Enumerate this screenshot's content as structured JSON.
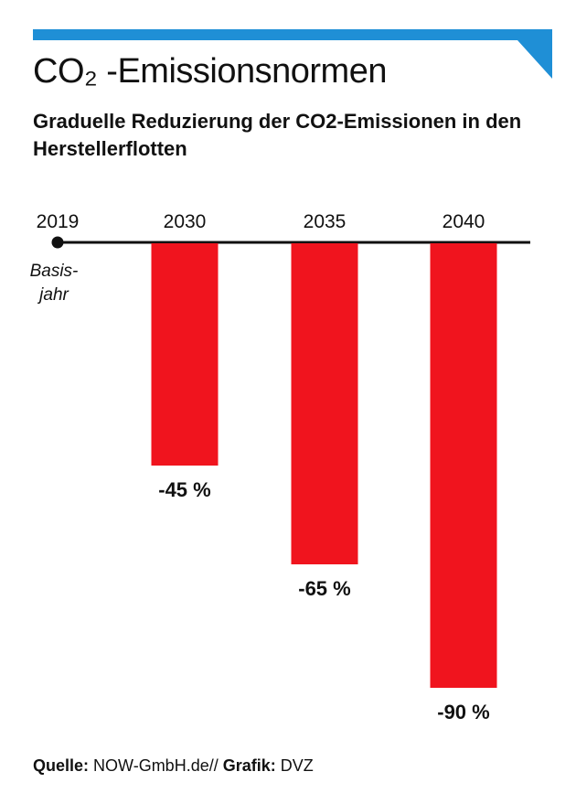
{
  "title": "CO₂ -Emissionsnormen",
  "subtitle": "Graduelle Reduzierung der CO2-Emissionen in den Herstellerflotten",
  "chart_data": {
    "type": "bar",
    "title": "CO₂ -Emissionsnormen",
    "subtitle": "Graduelle Reduzierung der CO2-Emissionen in den Herstellerflotten",
    "baseline": {
      "year": "2019",
      "label": [
        "Basis-",
        "jahr"
      ]
    },
    "categories": [
      "2030",
      "2035",
      "2040"
    ],
    "values": [
      -45,
      -65,
      -90
    ],
    "value_labels": [
      "-45 %",
      "-65 %",
      "-90 %"
    ],
    "unit": "%",
    "ylim": [
      -100,
      0
    ],
    "bar_color": "#f0141e",
    "grid": false
  },
  "colors": {
    "accent": "#1f8fd6",
    "bar": "#f0141e",
    "text": "#111111"
  },
  "footer": {
    "source_label": "Quelle:",
    "source_value": "NOW-GmbH.de//",
    "graphic_label": "Grafik:",
    "graphic_value": "DVZ"
  }
}
